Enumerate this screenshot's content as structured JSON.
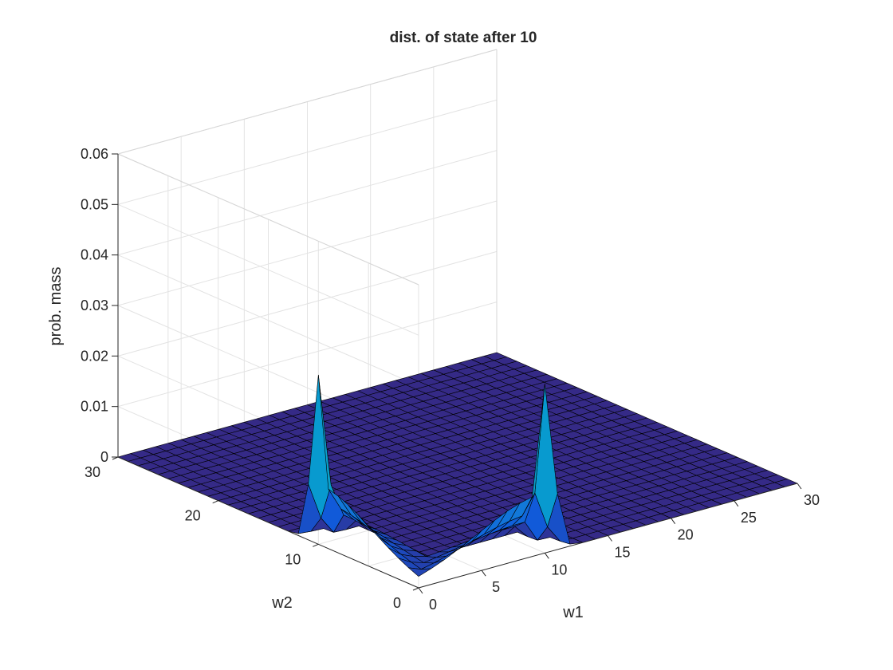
{
  "chart_data": {
    "type": "surface3d",
    "title": "dist. of state after 10",
    "xlabel": "w1",
    "ylabel": "w2",
    "zlabel": "prob. mass",
    "xlim": [
      0,
      30
    ],
    "ylim": [
      0,
      30
    ],
    "zlim": [
      0,
      0.06
    ],
    "x_ticks": [
      "0",
      "5",
      "10",
      "15",
      "20",
      "25",
      "30"
    ],
    "y_ticks": [
      "0",
      "10",
      "20",
      "30"
    ],
    "z_ticks": [
      "0",
      "0.01",
      "0.02",
      "0.03",
      "0.04",
      "0.05",
      "0.06"
    ],
    "grid": true,
    "colormap": "parula",
    "edge_color": "#000000",
    "description_values": {
      "grid_points_per_axis": 31,
      "peaks": [
        {
          "w1": 0,
          "w2": 10,
          "prob_mass": 0.0335
        },
        {
          "w1": 10,
          "w2": 0,
          "prob_mass": 0.0335
        }
      ],
      "ridge_value": 0.012,
      "background_value": 0
    }
  }
}
